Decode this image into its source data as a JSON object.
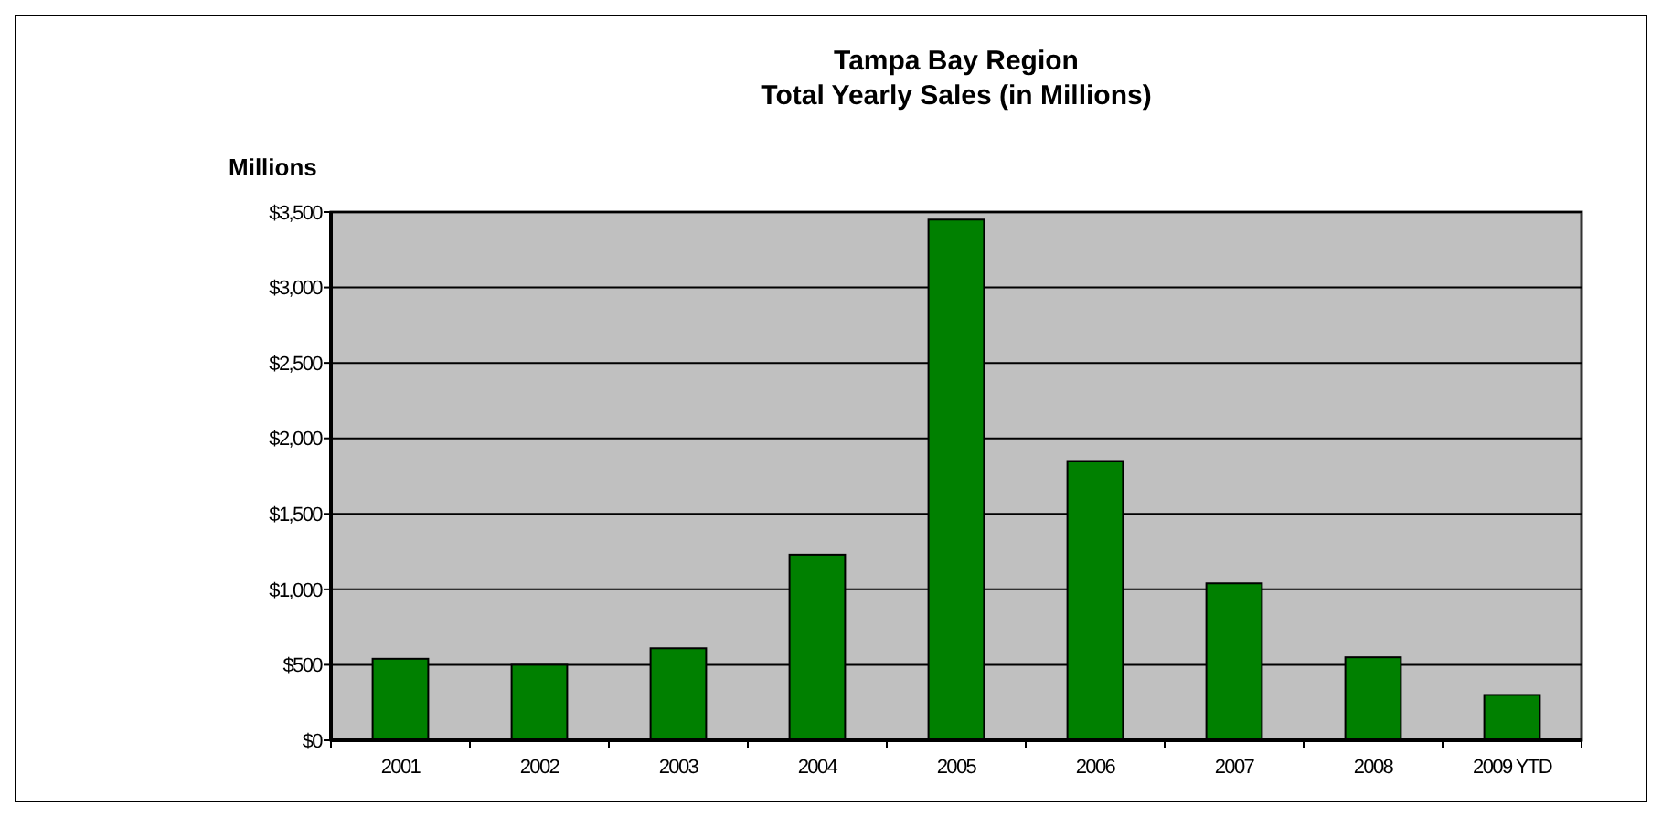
{
  "chart_data": {
    "type": "bar",
    "title": "Tampa Bay Region\nTotal Yearly Sales (in Millions)",
    "ylabel": "Millions",
    "categories": [
      "2001",
      "2002",
      "2003",
      "2004",
      "2005",
      "2006",
      "2007",
      "2008",
      "2009 YTD"
    ],
    "values": [
      540,
      500,
      610,
      1230,
      3450,
      1850,
      1040,
      550,
      300
    ],
    "color": "#008000",
    "ylim": [
      0,
      3500
    ],
    "yticks": [
      {
        "value": 0,
        "label": "$0"
      },
      {
        "value": 500,
        "label": "$500"
      },
      {
        "value": 1000,
        "label": "$1,000"
      },
      {
        "value": 1500,
        "label": "$1,500"
      },
      {
        "value": 2000,
        "label": "$2,000"
      },
      {
        "value": 2500,
        "label": "$2,500"
      },
      {
        "value": 3000,
        "label": "$3,000"
      },
      {
        "value": 3500,
        "label": "$3,500"
      }
    ],
    "grid": "y"
  }
}
